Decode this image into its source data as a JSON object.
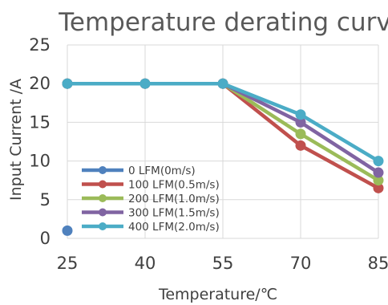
{
  "chart_data": {
    "type": "line",
    "title": "Temperature derating curve",
    "xlabel": "Temperature/℃",
    "ylabel": "Input Current /A",
    "categories": [
      "25",
      "40",
      "55",
      "70",
      "85"
    ],
    "x": [
      25,
      40,
      55,
      70,
      85
    ],
    "ylim": [
      0,
      25
    ],
    "yticks": [
      "0",
      "5",
      "10",
      "15",
      "20",
      "25"
    ],
    "grid": true,
    "legend_position": "lower-left",
    "series": [
      {
        "name": "0 LFM(0m/s)",
        "color": "#4f81bd",
        "values": [
          1,
          null,
          null,
          null,
          null
        ]
      },
      {
        "name": "100 LFM(0.5m/s)",
        "color": "#c0504d",
        "values": [
          20,
          20,
          20,
          12,
          6.5
        ]
      },
      {
        "name": "200 LFM(1.0m/s)",
        "color": "#9bbb59",
        "values": [
          20,
          20,
          20,
          13.5,
          7.5
        ]
      },
      {
        "name": "300 LFM(1.5m/s)",
        "color": "#8064a2",
        "values": [
          20,
          20,
          20,
          15,
          8.5
        ]
      },
      {
        "name": "400 LFM(2.0m/s)",
        "color": "#4bacc6",
        "values": [
          20,
          20,
          20,
          16,
          10
        ]
      }
    ]
  }
}
